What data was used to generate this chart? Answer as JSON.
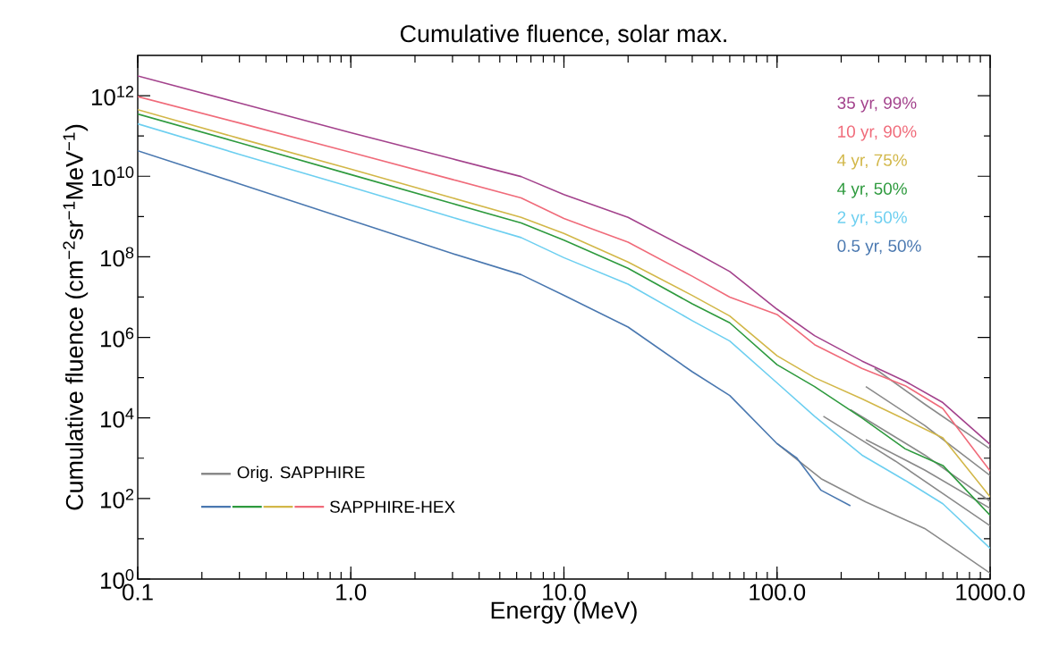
{
  "chart_data": {
    "type": "line",
    "title": "Cumulative fluence, solar max.",
    "xlabel": "Energy (MeV)",
    "ylabel": "Cumulative fluence (cm$^{−2}$sr$^{−1}$MeV$^{−1}$)",
    "log": "xy",
    "grid": false,
    "legend": "top right",
    "xlim": [
      0.1,
      1000
    ],
    "ylim": [
      1,
      10000000000000.0
    ],
    "xticks": [
      0.1,
      {
        "value": 1,
        "label": "1.0"
      },
      {
        "value": 10,
        "label": "10.0"
      },
      {
        "value": 100,
        "label": "100.0"
      },
      {
        "value": 1000,
        "label": "1000.0"
      }
    ],
    "yticks": [
      {
        "value": 1,
        "label": "10$^{0}$"
      },
      {
        "value": 10,
        "label": null
      },
      {
        "value": 100,
        "label": "10$^{2}$"
      },
      {
        "value": 1000,
        "label": null
      },
      {
        "value": 10000.0,
        "label": "10$^{4}$"
      },
      {
        "value": 100000.0,
        "label": null
      },
      {
        "value": 1000000.0,
        "label": "10$^{6}$"
      },
      {
        "value": 10000000.0,
        "label": null
      },
      {
        "value": 100000000.0,
        "label": "10$^{8}$"
      },
      {
        "value": 1000000000.0,
        "label": null
      },
      {
        "value": 10000000000.0,
        "label": "10$^{10}$"
      },
      {
        "value": 100000000000.0,
        "label": null
      },
      {
        "value": 1000000000000.0,
        "label": "10$^{12}$"
      }
    ],
    "annotations": [
      "Orig. SAPPHIRE",
      "SAPPHIRE-HEX"
    ],
    "series": [
      {
        "color": "#8a8a8a",
        "x": [
          287,
          493,
          1000
        ],
        "values": [
          170000.0,
          22000.0,
          1700.0
        ]
      },
      {
        "color": "#8a8a8a",
        "x": [
          261,
          493,
          1000
        ],
        "values": [
          60000.0,
          6500.0,
          370.0
        ]
      },
      {
        "color": "#8a8a8a",
        "x": [
          221,
          493,
          1000
        ],
        "values": [
          16000.0,
          1200.0,
          85
        ]
      },
      {
        "color": "#8a8a8a",
        "x": [
          261,
          493,
          1000
        ],
        "values": [
          2900.0,
          510.0,
          57
        ]
      },
      {
        "color": "#8a8a8a",
        "x": [
          165,
          359,
          1000
        ],
        "values": [
          11000.0,
          850.0,
          21
        ]
      },
      {
        "color": "#8a8a8a",
        "x": [
          100,
          161,
          261,
          493,
          726,
          1000
        ],
        "values": [
          2300.0,
          310.0,
          82,
          18,
          4.5,
          1.4
        ]
      },
      {
        "name": "35 yr, 99%",
        "color": "#a3428c",
        "x": [
          0.1,
          0.3,
          1,
          3,
          6.3,
          10,
          20,
          40,
          60,
          100,
          150,
          250,
          400,
          600,
          1000
        ],
        "values": [
          3100000000000.0,
          660000000000.0,
          120000000000.0,
          27000000000.0,
          9800000000.0,
          3500000000.0,
          950000000.0,
          140000000.0,
          43000000.0,
          5000000.0,
          1100000.0,
          260000.0,
          81000.0,
          24000.0,
          2200.0
        ]
      },
      {
        "name": "10 yr, 90%",
        "color": "#f06b7a",
        "x": [
          0.1,
          0.3,
          1,
          3,
          6.3,
          10,
          20,
          40,
          60,
          100,
          150,
          250,
          400,
          600,
          1000
        ],
        "values": [
          950000000000.0,
          210000000000.0,
          39000000000.0,
          8300000000.0,
          2900000000.0,
          890000000.0,
          230000000.0,
          33000000.0,
          10000000.0,
          3700000.0,
          660000.0,
          170000.0,
          63000.0,
          17000.0,
          480.0
        ]
      },
      {
        "name": "4 yr, 75%",
        "color": "#d2b748",
        "x": [
          0.1,
          0.3,
          1,
          3,
          6.3,
          10,
          20,
          40,
          60,
          100,
          150,
          250,
          400,
          600,
          1000
        ],
        "values": [
          450000000000.0,
          87000000000.0,
          15000000000.0,
          2900000000.0,
          950000000.0,
          380000000.0,
          74000000.0,
          11000000.0,
          3400000.0,
          350000.0,
          100000.0,
          30000.0,
          9100.0,
          3200.0,
          110.0
        ]
      },
      {
        "name": "4 yr, 50%",
        "color": "#2e9a3e",
        "x": [
          0.1,
          0.3,
          1,
          3,
          6.3,
          10,
          20,
          40,
          60,
          100,
          150,
          250,
          400,
          600,
          1000
        ],
        "values": [
          350000000000.0,
          68000000000.0,
          11000000000.0,
          2100000000.0,
          690000000.0,
          260000000.0,
          52000000.0,
          6800000.0,
          2300000.0,
          210000.0,
          60000.0,
          10000.0,
          1700.0,
          660.0,
          38
        ]
      },
      {
        "name": "2 yr, 50%",
        "color": "#6dcff0",
        "x": [
          0.1,
          0.3,
          1,
          3,
          6.3,
          10,
          20,
          40,
          60,
          100,
          150,
          250,
          400,
          600,
          1000
        ],
        "values": [
          200000000000.0,
          35000000000.0,
          5400000000.0,
          950000000.0,
          300000000.0,
          95000000.0,
          21000000.0,
          2600000.0,
          810000.0,
          74000.0,
          11000.0,
          1200.0,
          280.0,
          74,
          5.8
        ]
      },
      {
        "name": "0.5 yr, 50%",
        "color": "#4a78b0",
        "x": [
          0.1,
          0.3,
          1,
          3,
          6.3,
          10,
          20,
          40,
          60,
          100,
          124,
          161,
          221
        ],
        "values": [
          43000000000.0,
          6500000000.0,
          810000000.0,
          120000000.0,
          36000000.0,
          11000000.0,
          1800000.0,
          140000.0,
          36000.0,
          2300.0,
          1000.0,
          160.0,
          66
        ]
      }
    ]
  }
}
